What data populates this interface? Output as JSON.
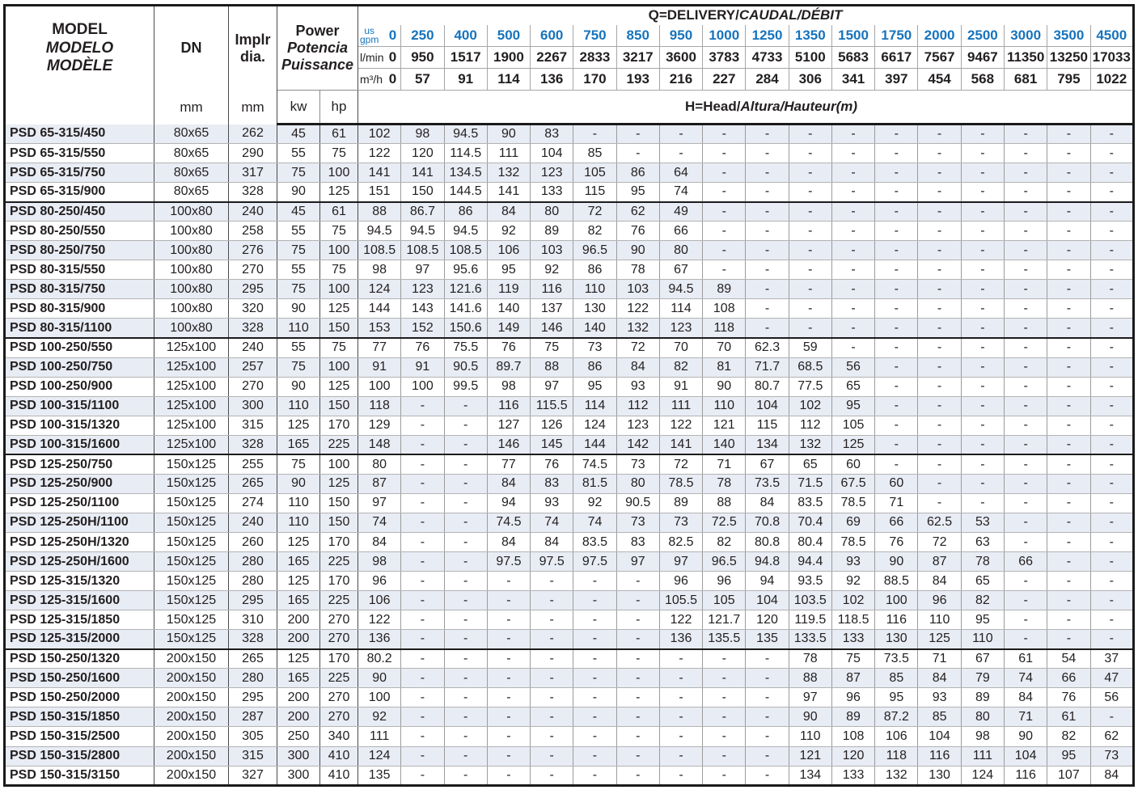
{
  "colors": {
    "accent_blue": "#1673bd",
    "row_stripe": "#e8ecf4",
    "text": "#231f20"
  },
  "header": {
    "model_en": "MODEL",
    "model_es": "MODELO",
    "model_fr": "MODÈLE",
    "dn_label": "DN",
    "dn_unit": "mm",
    "impeller_line1": "Implr",
    "impeller_line2": "dia.",
    "impeller_unit": "mm",
    "power_en": "Power",
    "power_es": "Potencia",
    "power_fr": "Puissance",
    "power_unit_kw": "kw",
    "power_unit_hp": "hp",
    "delivery_title_bold": "Q=DELIVERY/",
    "delivery_title_italic": "CAUDAL/DÉBIT",
    "head_bold": "H=Head/",
    "head_italic": "Altura/Hauteur",
    "head_paren": "(m)",
    "flow_rows": [
      {
        "key": "us-gpm",
        "unit": "us gpm",
        "stacked": true,
        "color": "blue",
        "values": [
          "0",
          "250",
          "400",
          "500",
          "600",
          "750",
          "850",
          "950",
          "1000",
          "1250",
          "1350",
          "1500",
          "1750",
          "2000",
          "2500",
          "3000",
          "3500",
          "4500"
        ]
      },
      {
        "key": "l-min",
        "unit": "l/min",
        "stacked": false,
        "color": "dark",
        "values": [
          "0",
          "950",
          "1517",
          "1900",
          "2267",
          "2833",
          "3217",
          "3600",
          "3783",
          "4733",
          "5100",
          "5683",
          "6617",
          "7567",
          "9467",
          "11350",
          "13250",
          "17033"
        ]
      },
      {
        "key": "m3-h",
        "unit": "m³/h",
        "stacked": false,
        "color": "dark",
        "values": [
          "0",
          "57",
          "91",
          "114",
          "136",
          "170",
          "193",
          "216",
          "227",
          "284",
          "306",
          "341",
          "397",
          "454",
          "568",
          "681",
          "795",
          "1022"
        ]
      }
    ]
  },
  "rows": [
    {
      "model": "PSD 65-315/450",
      "dn": "80x65",
      "dia": "262",
      "kw": "45",
      "hp": "61",
      "group_start": false,
      "heads": [
        "102",
        "98",
        "94.5",
        "90",
        "83",
        "-",
        "-",
        "-",
        "-",
        "-",
        "-",
        "-",
        "-",
        "-",
        "-",
        "-",
        "-",
        "-"
      ]
    },
    {
      "model": "PSD 65-315/550",
      "dn": "80x65",
      "dia": "290",
      "kw": "55",
      "hp": "75",
      "group_start": false,
      "heads": [
        "122",
        "120",
        "114.5",
        "111",
        "104",
        "85",
        "-",
        "-",
        "-",
        "-",
        "-",
        "-",
        "-",
        "-",
        "-",
        "-",
        "-",
        "-"
      ]
    },
    {
      "model": "PSD 65-315/750",
      "dn": "80x65",
      "dia": "317",
      "kw": "75",
      "hp": "100",
      "group_start": false,
      "heads": [
        "141",
        "141",
        "134.5",
        "132",
        "123",
        "105",
        "86",
        "64",
        "-",
        "-",
        "-",
        "-",
        "-",
        "-",
        "-",
        "-",
        "-",
        "-"
      ]
    },
    {
      "model": "PSD 65-315/900",
      "dn": "80x65",
      "dia": "328",
      "kw": "90",
      "hp": "125",
      "group_start": false,
      "heads": [
        "151",
        "150",
        "144.5",
        "141",
        "133",
        "115",
        "95",
        "74",
        "-",
        "-",
        "-",
        "-",
        "-",
        "-",
        "-",
        "-",
        "-",
        "-"
      ]
    },
    {
      "model": "PSD 80-250/450",
      "dn": "100x80",
      "dia": "240",
      "kw": "45",
      "hp": "61",
      "group_start": true,
      "heads": [
        "88",
        "86.7",
        "86",
        "84",
        "80",
        "72",
        "62",
        "49",
        "-",
        "-",
        "-",
        "-",
        "-",
        "-",
        "-",
        "-",
        "-",
        "-"
      ]
    },
    {
      "model": "PSD 80-250/550",
      "dn": "100x80",
      "dia": "258",
      "kw": "55",
      "hp": "75",
      "group_start": false,
      "heads": [
        "94.5",
        "94.5",
        "94.5",
        "92",
        "89",
        "82",
        "76",
        "66",
        "-",
        "-",
        "-",
        "-",
        "-",
        "-",
        "-",
        "-",
        "-",
        "-"
      ]
    },
    {
      "model": "PSD 80-250/750",
      "dn": "100x80",
      "dia": "276",
      "kw": "75",
      "hp": "100",
      "group_start": false,
      "heads": [
        "108.5",
        "108.5",
        "108.5",
        "106",
        "103",
        "96.5",
        "90",
        "80",
        "-",
        "-",
        "-",
        "-",
        "-",
        "-",
        "-",
        "-",
        "-",
        "-"
      ]
    },
    {
      "model": "PSD 80-315/550",
      "dn": "100x80",
      "dia": "270",
      "kw": "55",
      "hp": "75",
      "group_start": false,
      "heads": [
        "98",
        "97",
        "95.6",
        "95",
        "92",
        "86",
        "78",
        "67",
        "-",
        "-",
        "-",
        "-",
        "-",
        "-",
        "-",
        "-",
        "-",
        "-"
      ]
    },
    {
      "model": "PSD 80-315/750",
      "dn": "100x80",
      "dia": "295",
      "kw": "75",
      "hp": "100",
      "group_start": false,
      "heads": [
        "124",
        "123",
        "121.6",
        "119",
        "116",
        "110",
        "103",
        "94.5",
        "89",
        "-",
        "-",
        "-",
        "-",
        "-",
        "-",
        "-",
        "-",
        "-"
      ]
    },
    {
      "model": "PSD 80-315/900",
      "dn": "100x80",
      "dia": "320",
      "kw": "90",
      "hp": "125",
      "group_start": false,
      "heads": [
        "144",
        "143",
        "141.6",
        "140",
        "137",
        "130",
        "122",
        "114",
        "108",
        "-",
        "-",
        "-",
        "-",
        "-",
        "-",
        "-",
        "-",
        "-"
      ]
    },
    {
      "model": "PSD 80-315/1100",
      "dn": "100x80",
      "dia": "328",
      "kw": "110",
      "hp": "150",
      "group_start": false,
      "heads": [
        "153",
        "152",
        "150.6",
        "149",
        "146",
        "140",
        "132",
        "123",
        "118",
        "-",
        "-",
        "-",
        "-",
        "-",
        "-",
        "-",
        "-",
        "-"
      ]
    },
    {
      "model": "PSD 100-250/550",
      "dn": "125x100",
      "dia": "240",
      "kw": "55",
      "hp": "75",
      "group_start": true,
      "heads": [
        "77",
        "76",
        "75.5",
        "76",
        "75",
        "73",
        "72",
        "70",
        "70",
        "62.3",
        "59",
        "-",
        "-",
        "-",
        "-",
        "-",
        "-",
        "-"
      ]
    },
    {
      "model": "PSD 100-250/750",
      "dn": "125x100",
      "dia": "257",
      "kw": "75",
      "hp": "100",
      "group_start": false,
      "heads": [
        "91",
        "91",
        "90.5",
        "89.7",
        "88",
        "86",
        "84",
        "82",
        "81",
        "71.7",
        "68.5",
        "56",
        "-",
        "-",
        "-",
        "-",
        "-",
        "-"
      ]
    },
    {
      "model": "PSD 100-250/900",
      "dn": "125x100",
      "dia": "270",
      "kw": "90",
      "hp": "125",
      "group_start": false,
      "heads": [
        "100",
        "100",
        "99.5",
        "98",
        "97",
        "95",
        "93",
        "91",
        "90",
        "80.7",
        "77.5",
        "65",
        "-",
        "-",
        "-",
        "-",
        "-",
        "-"
      ]
    },
    {
      "model": "PSD 100-315/1100",
      "dn": "125x100",
      "dia": "300",
      "kw": "110",
      "hp": "150",
      "group_start": false,
      "heads": [
        "118",
        "-",
        "-",
        "116",
        "115.5",
        "114",
        "112",
        "111",
        "110",
        "104",
        "102",
        "95",
        "-",
        "-",
        "-",
        "-",
        "-",
        "-"
      ]
    },
    {
      "model": "PSD 100-315/1320",
      "dn": "125x100",
      "dia": "315",
      "kw": "125",
      "hp": "170",
      "group_start": false,
      "heads": [
        "129",
        "-",
        "-",
        "127",
        "126",
        "124",
        "123",
        "122",
        "121",
        "115",
        "112",
        "105",
        "-",
        "-",
        "-",
        "-",
        "-",
        "-"
      ]
    },
    {
      "model": "PSD 100-315/1600",
      "dn": "125x100",
      "dia": "328",
      "kw": "165",
      "hp": "225",
      "group_start": false,
      "heads": [
        "148",
        "-",
        "-",
        "146",
        "145",
        "144",
        "142",
        "141",
        "140",
        "134",
        "132",
        "125",
        "-",
        "-",
        "-",
        "-",
        "-",
        "-"
      ]
    },
    {
      "model": "PSD 125-250/750",
      "dn": "150x125",
      "dia": "255",
      "kw": "75",
      "hp": "100",
      "group_start": true,
      "heads": [
        "80",
        "-",
        "-",
        "77",
        "76",
        "74.5",
        "73",
        "72",
        "71",
        "67",
        "65",
        "60",
        "-",
        "-",
        "-",
        "-",
        "-",
        "-"
      ]
    },
    {
      "model": "PSD 125-250/900",
      "dn": "150x125",
      "dia": "265",
      "kw": "90",
      "hp": "125",
      "group_start": false,
      "heads": [
        "87",
        "-",
        "-",
        "84",
        "83",
        "81.5",
        "80",
        "78.5",
        "78",
        "73.5",
        "71.5",
        "67.5",
        "60",
        "-",
        "-",
        "-",
        "-",
        "-"
      ]
    },
    {
      "model": "PSD 125-250/1100",
      "dn": "150x125",
      "dia": "274",
      "kw": "110",
      "hp": "150",
      "group_start": false,
      "heads": [
        "97",
        "-",
        "-",
        "94",
        "93",
        "92",
        "90.5",
        "89",
        "88",
        "84",
        "83.5",
        "78.5",
        "71",
        "-",
        "-",
        "-",
        "-",
        "-"
      ]
    },
    {
      "model": "PSD 125-250H/1100",
      "dn": "150x125",
      "dia": "240",
      "kw": "110",
      "hp": "150",
      "group_start": false,
      "heads": [
        "74",
        "-",
        "-",
        "74.5",
        "74",
        "74",
        "73",
        "73",
        "72.5",
        "70.8",
        "70.4",
        "69",
        "66",
        "62.5",
        "53",
        "-",
        "-",
        "-"
      ]
    },
    {
      "model": "PSD 125-250H/1320",
      "dn": "150x125",
      "dia": "260",
      "kw": "125",
      "hp": "170",
      "group_start": false,
      "heads": [
        "84",
        "-",
        "-",
        "84",
        "84",
        "83.5",
        "83",
        "82.5",
        "82",
        "80.8",
        "80.4",
        "78.5",
        "76",
        "72",
        "63",
        "-",
        "-",
        "-"
      ]
    },
    {
      "model": "PSD 125-250H/1600",
      "dn": "150x125",
      "dia": "280",
      "kw": "165",
      "hp": "225",
      "group_start": false,
      "heads": [
        "98",
        "-",
        "-",
        "97.5",
        "97.5",
        "97.5",
        "97",
        "97",
        "96.5",
        "94.8",
        "94.4",
        "93",
        "90",
        "87",
        "78",
        "66",
        "-",
        "-"
      ]
    },
    {
      "model": "PSD 125-315/1320",
      "dn": "150x125",
      "dia": "280",
      "kw": "125",
      "hp": "170",
      "group_start": false,
      "heads": [
        "96",
        "-",
        "-",
        "-",
        "-",
        "-",
        "-",
        "96",
        "96",
        "94",
        "93.5",
        "92",
        "88.5",
        "84",
        "65",
        "-",
        "-",
        "-"
      ]
    },
    {
      "model": "PSD 125-315/1600",
      "dn": "150x125",
      "dia": "295",
      "kw": "165",
      "hp": "225",
      "group_start": false,
      "heads": [
        "106",
        "-",
        "-",
        "-",
        "-",
        "-",
        "-",
        "105.5",
        "105",
        "104",
        "103.5",
        "102",
        "100",
        "96",
        "82",
        "-",
        "-",
        "-"
      ]
    },
    {
      "model": "PSD 125-315/1850",
      "dn": "150x125",
      "dia": "310",
      "kw": "200",
      "hp": "270",
      "group_start": false,
      "heads": [
        "122",
        "-",
        "-",
        "-",
        "-",
        "-",
        "-",
        "122",
        "121.7",
        "120",
        "119.5",
        "118.5",
        "116",
        "110",
        "95",
        "-",
        "-",
        "-"
      ]
    },
    {
      "model": "PSD 125-315/2000",
      "dn": "150x125",
      "dia": "328",
      "kw": "200",
      "hp": "270",
      "group_start": false,
      "heads": [
        "136",
        "-",
        "-",
        "-",
        "-",
        "-",
        "-",
        "136",
        "135.5",
        "135",
        "133.5",
        "133",
        "130",
        "125",
        "110",
        "-",
        "-",
        "-"
      ]
    },
    {
      "model": "PSD 150-250/1320",
      "dn": "200x150",
      "dia": "265",
      "kw": "125",
      "hp": "170",
      "group_start": true,
      "heads": [
        "80.2",
        "-",
        "-",
        "-",
        "-",
        "-",
        "-",
        "-",
        "-",
        "-",
        "78",
        "75",
        "73.5",
        "71",
        "67",
        "61",
        "54",
        "37"
      ]
    },
    {
      "model": "PSD 150-250/1600",
      "dn": "200x150",
      "dia": "280",
      "kw": "165",
      "hp": "225",
      "group_start": false,
      "heads": [
        "90",
        "-",
        "-",
        "-",
        "-",
        "-",
        "-",
        "-",
        "-",
        "-",
        "88",
        "87",
        "85",
        "84",
        "79",
        "74",
        "66",
        "47"
      ]
    },
    {
      "model": "PSD 150-250/2000",
      "dn": "200x150",
      "dia": "295",
      "kw": "200",
      "hp": "270",
      "group_start": false,
      "heads": [
        "100",
        "-",
        "-",
        "-",
        "-",
        "-",
        "-",
        "-",
        "-",
        "-",
        "97",
        "96",
        "95",
        "93",
        "89",
        "84",
        "76",
        "56"
      ]
    },
    {
      "model": "PSD 150-315/1850",
      "dn": "200x150",
      "dia": "287",
      "kw": "200",
      "hp": "270",
      "group_start": false,
      "heads": [
        "92",
        "-",
        "-",
        "-",
        "-",
        "-",
        "-",
        "-",
        "-",
        "-",
        "90",
        "89",
        "87.2",
        "85",
        "80",
        "71",
        "61",
        "-"
      ]
    },
    {
      "model": "PSD 150-315/2500",
      "dn": "200x150",
      "dia": "305",
      "kw": "250",
      "hp": "340",
      "group_start": false,
      "heads": [
        "111",
        "-",
        "-",
        "-",
        "-",
        "-",
        "-",
        "-",
        "-",
        "-",
        "110",
        "108",
        "106",
        "104",
        "98",
        "90",
        "82",
        "62"
      ]
    },
    {
      "model": "PSD 150-315/2800",
      "dn": "200x150",
      "dia": "315",
      "kw": "300",
      "hp": "410",
      "group_start": false,
      "heads": [
        "124",
        "-",
        "-",
        "-",
        "-",
        "-",
        "-",
        "-",
        "-",
        "-",
        "121",
        "120",
        "118",
        "116",
        "111",
        "104",
        "95",
        "73"
      ]
    },
    {
      "model": "PSD 150-315/3150",
      "dn": "200x150",
      "dia": "327",
      "kw": "300",
      "hp": "410",
      "group_start": false,
      "heads": [
        "135",
        "-",
        "-",
        "-",
        "-",
        "-",
        "-",
        "-",
        "-",
        "-",
        "134",
        "133",
        "132",
        "130",
        "124",
        "116",
        "107",
        "84"
      ]
    }
  ]
}
